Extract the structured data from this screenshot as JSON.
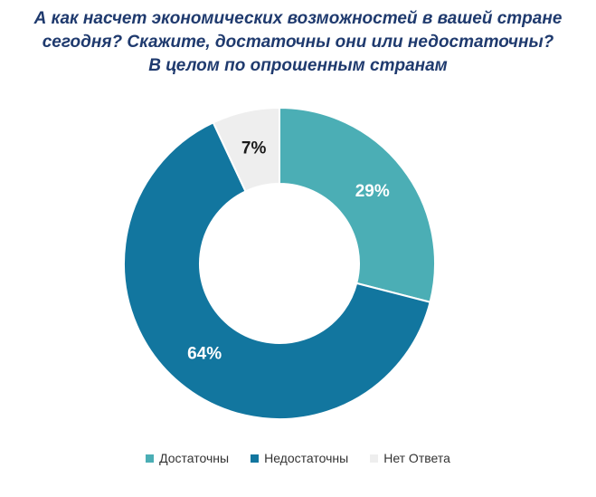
{
  "chart_data": {
    "type": "pie",
    "title_lines": [
      "А как насчет экономических возможностей в вашей стране",
      "сегодня? Скажите, достаточны они или недостаточны?",
      "В целом по опрошенным странам"
    ],
    "slices": [
      {
        "label": "Достаточны",
        "value": 29,
        "value_label": "29%",
        "color": "#4baeb5"
      },
      {
        "label": "Недостаточны",
        "value": 64,
        "value_label": "64%",
        "color": "#12769f"
      },
      {
        "label": "Нет Ответа",
        "value": 7,
        "value_label": "7%",
        "color": "#eeeeee"
      }
    ],
    "legend_position": "bottom",
    "donut": true
  }
}
